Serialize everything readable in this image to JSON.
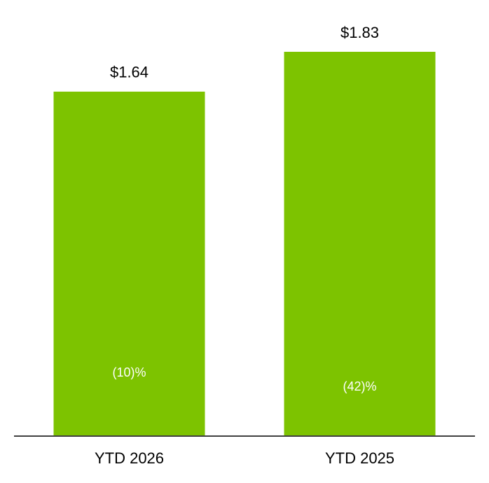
{
  "chart_data": {
    "type": "bar",
    "categories": [
      "YTD 2026",
      "YTD 2025"
    ],
    "values": [
      1.64,
      1.83
    ],
    "value_labels": [
      "$1.64",
      "$1.83"
    ],
    "annotations": [
      "(10)%",
      "(42)%"
    ],
    "color": "#7dc300"
  }
}
